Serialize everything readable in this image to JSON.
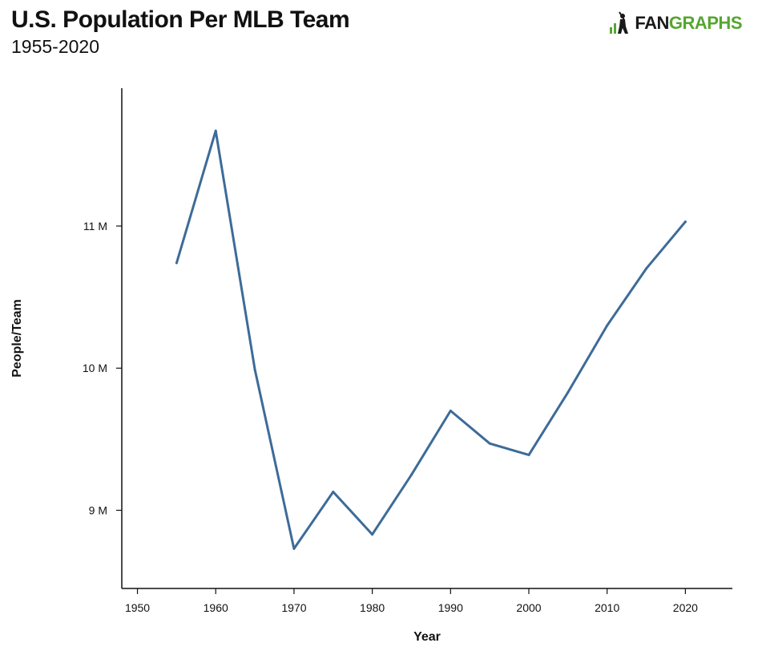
{
  "header": {
    "title": "U.S. Population Per MLB Team",
    "subtitle": "1955-2020"
  },
  "logo": {
    "text_dark": "FAN",
    "text_green": "GRAPHS",
    "icon": "batter-icon",
    "color_dark": "#1a1a1a",
    "color_green": "#55a630"
  },
  "chart_data": {
    "type": "line",
    "xlabel": "Year",
    "ylabel": "People/Team",
    "xlim": [
      1948,
      2026
    ],
    "ylim": [
      8.45,
      11.97
    ],
    "x_ticks": [
      1950,
      1960,
      1970,
      1980,
      1990,
      2000,
      2010,
      2020
    ],
    "y_ticks": [
      {
        "value": 9,
        "label": "9 M"
      },
      {
        "value": 10,
        "label": "10 M"
      },
      {
        "value": 11,
        "label": "11 M"
      }
    ],
    "grid": false,
    "line_color": "#3d6b99",
    "series": [
      {
        "x": [
          1955,
          1960,
          1965,
          1970,
          1975,
          1980,
          1985,
          1990,
          1995,
          2000,
          2005,
          2010,
          2015,
          2020
        ],
        "values": [
          10.74,
          11.67,
          9.99,
          8.73,
          9.13,
          8.83,
          9.25,
          9.7,
          9.47,
          9.39,
          9.83,
          10.3,
          10.7,
          11.03
        ]
      }
    ]
  }
}
